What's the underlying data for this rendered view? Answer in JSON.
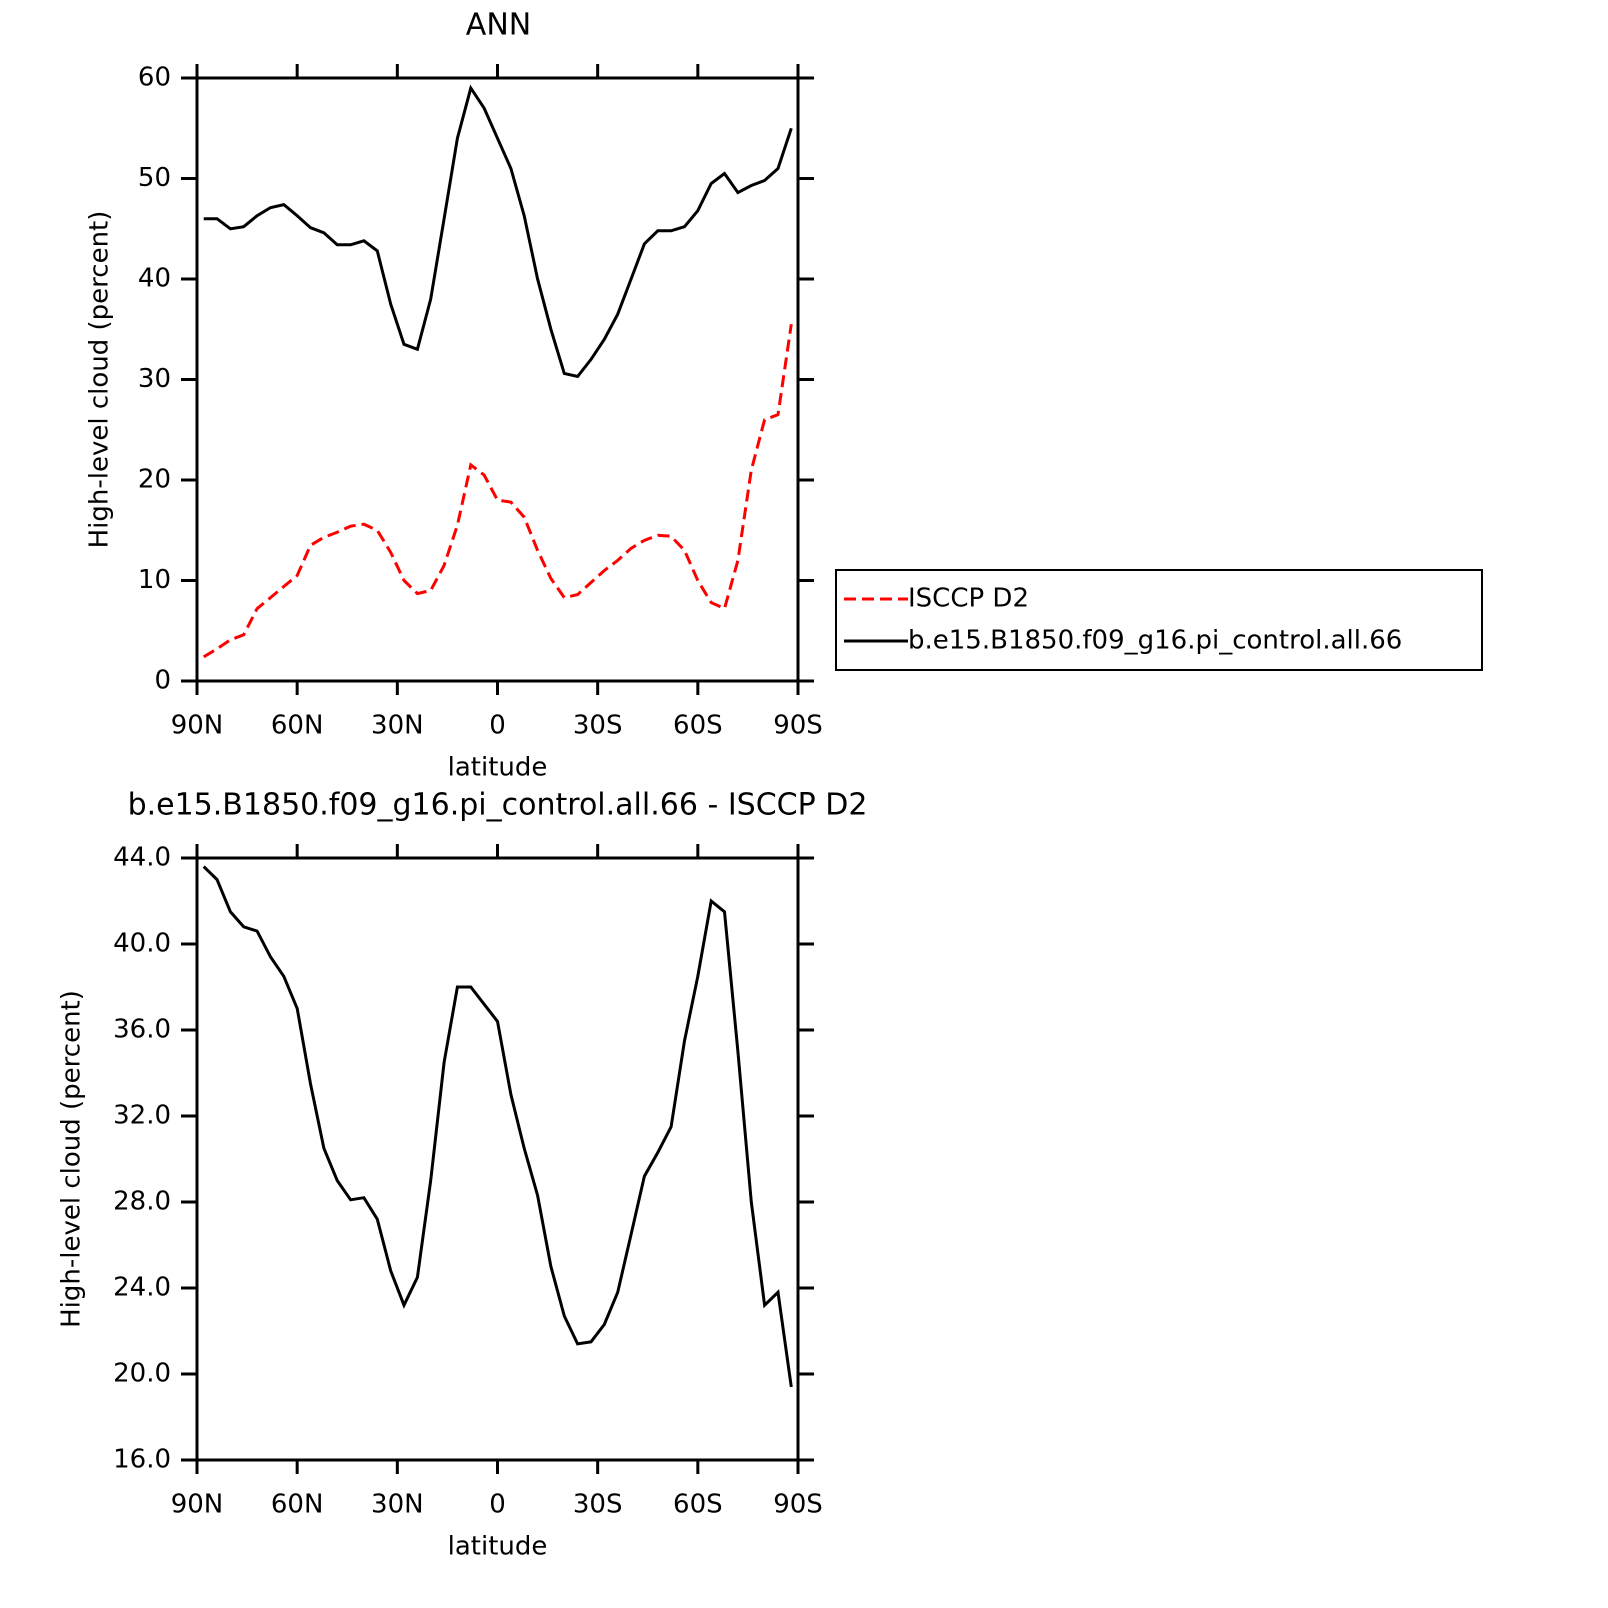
{
  "chart_data": [
    {
      "type": "line",
      "title": "ANN",
      "xlabel": "latitude",
      "ylabel": "High-level cloud (percent)",
      "x": [
        88,
        84,
        80,
        76,
        72,
        68,
        64,
        60,
        56,
        52,
        48,
        44,
        40,
        36,
        32,
        28,
        24,
        20,
        16,
        12,
        8,
        4,
        0,
        -4,
        -8,
        -12,
        -16,
        -20,
        -24,
        -28,
        -32,
        -36,
        -40,
        -44,
        -48,
        -52,
        -56,
        -60,
        -64,
        -68,
        -72,
        -76,
        -80,
        -84,
        -88
      ],
      "xlim": [
        90,
        -90
      ],
      "xticks": [
        {
          "value": 90,
          "label": "90N"
        },
        {
          "value": 60,
          "label": "60N"
        },
        {
          "value": 30,
          "label": "30N"
        },
        0,
        {
          "value": -30,
          "label": "30S"
        },
        {
          "value": -60,
          "label": "60S"
        },
        {
          "value": -90,
          "label": "90S"
        }
      ],
      "ylim": [
        0,
        60
      ],
      "yticks": [
        0,
        10,
        20,
        30,
        40,
        50,
        60
      ],
      "legend": "right",
      "series": [
        {
          "name": "ISCCP D2",
          "color": "#ff0000",
          "style": "dashed",
          "values": [
            2.4,
            3.2,
            4.1,
            4.6,
            7.2,
            8.3,
            9.4,
            10.5,
            13.5,
            14.3,
            14.8,
            15.4,
            15.6,
            15.0,
            12.8,
            10.0,
            8.7,
            9.0,
            11.5,
            15.5,
            21.5,
            20.5,
            18.0,
            17.8,
            16.3,
            13.0,
            10.2,
            8.3,
            8.6,
            9.8,
            11.0,
            12.0,
            13.2,
            14.0,
            14.5,
            14.4,
            13.0,
            10.0,
            7.8,
            7.2,
            12.0,
            21.0,
            26.0,
            26.5,
            35.5
          ]
        },
        {
          "name": "b.e15.B1850.f09_g16.pi_control.all.66",
          "color": "#000000",
          "style": "solid",
          "values": [
            46.0,
            46.0,
            45.0,
            45.2,
            46.3,
            47.1,
            47.4,
            46.3,
            45.1,
            44.6,
            43.4,
            43.4,
            43.8,
            42.8,
            37.5,
            33.5,
            33.0,
            38.0,
            46.0,
            54.0,
            59.0,
            57.0,
            54.0,
            51.0,
            46.3,
            40.0,
            35.0,
            30.6,
            30.3,
            32.0,
            34.0,
            36.5,
            40.0,
            43.5,
            44.8,
            44.8,
            45.2,
            46.8,
            49.5,
            50.5,
            48.6,
            49.3,
            49.8,
            51.0,
            55.0
          ]
        }
      ]
    },
    {
      "type": "line",
      "title": "b.e15.B1850.f09_g16.pi_control.all.66 - ISCCP D2",
      "xlabel": "latitude",
      "ylabel": "High-level cloud (percent)",
      "x": [
        88,
        84,
        80,
        76,
        72,
        68,
        64,
        60,
        56,
        52,
        48,
        44,
        40,
        36,
        32,
        28,
        24,
        20,
        16,
        12,
        8,
        4,
        0,
        -4,
        -8,
        -12,
        -16,
        -20,
        -24,
        -28,
        -32,
        -36,
        -40,
        -44,
        -48,
        -52,
        -56,
        -60,
        -64,
        -68,
        -72,
        -76,
        -80,
        -84,
        -88
      ],
      "xlim": [
        90,
        -90
      ],
      "xticks": [
        {
          "value": 90,
          "label": "90N"
        },
        {
          "value": 60,
          "label": "60N"
        },
        {
          "value": 30,
          "label": "30N"
        },
        0,
        {
          "value": -30,
          "label": "30S"
        },
        {
          "value": -60,
          "label": "60S"
        },
        {
          "value": -90,
          "label": "90S"
        }
      ],
      "ylim": [
        16,
        44
      ],
      "yticks": [
        {
          "value": 16,
          "label": "16.0"
        },
        {
          "value": 20,
          "label": "20.0"
        },
        {
          "value": 24,
          "label": "24.0"
        },
        {
          "value": 28,
          "label": "28.0"
        },
        {
          "value": 32,
          "label": "32.0"
        },
        {
          "value": 36,
          "label": "36.0"
        },
        {
          "value": 40,
          "label": "40.0"
        },
        {
          "value": 44,
          "label": "44.0"
        }
      ],
      "series": [
        {
          "color": "#000000",
          "style": "solid",
          "values": [
            43.6,
            43.0,
            41.5,
            40.8,
            40.6,
            39.4,
            38.5,
            37.0,
            33.5,
            30.5,
            29.0,
            28.1,
            28.2,
            27.2,
            24.8,
            23.2,
            24.5,
            29.0,
            34.5,
            38.0,
            38.0,
            37.2,
            36.4,
            33.0,
            30.5,
            28.3,
            25.0,
            22.7,
            21.4,
            21.5,
            22.3,
            23.8,
            26.5,
            29.2,
            30.3,
            31.5,
            35.5,
            38.5,
            42.0,
            41.5,
            35.0,
            28.0,
            23.2,
            23.8,
            19.4
          ]
        }
      ]
    }
  ]
}
